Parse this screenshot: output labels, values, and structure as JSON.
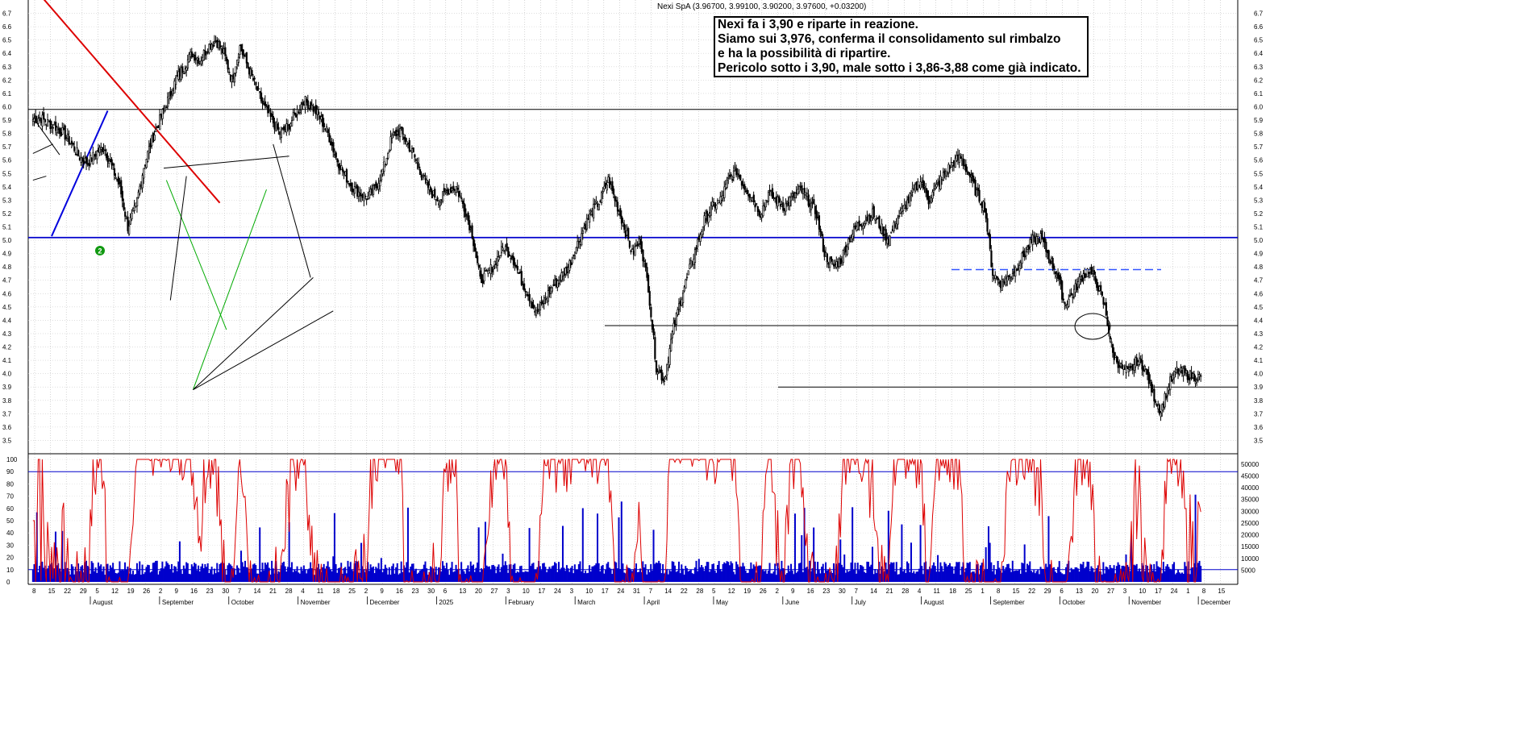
{
  "chart_data": [
    {
      "type": "candlestick",
      "title": "Nexi SpA (3.96700, 3.99100, 3.90200, 3.97600, +0.03200)",
      "ylim": [
        3.4,
        6.8
      ],
      "y_ticks": [
        "3.5",
        "3.6",
        "3.7",
        "3.8",
        "3.9",
        "4.0",
        "4.1",
        "4.2",
        "4.3",
        "4.4",
        "4.5",
        "4.6",
        "4.7",
        "4.8",
        "4.9",
        "5.0",
        "5.1",
        "5.2",
        "5.3",
        "5.4",
        "5.5",
        "5.6",
        "5.7",
        "5.8",
        "5.9",
        "6.0",
        "6.1",
        "6.2",
        "6.3",
        "6.4",
        "6.5",
        "6.6",
        "6.7"
      ],
      "annotation": {
        "lines": [
          "Nexi fa i 3,90 e riparte in reazione.",
          "Siamo sui 3,976, conferma il consolidamento sul rimbalzo",
          "e ha la possibilità di ripartire.",
          "Pericolo sotto i 3,90, male sotto i 3,86-3,88 come già indicato."
        ]
      },
      "marker_label": "2",
      "horizontal_levels": [
        {
          "value": 5.98,
          "color": "#000000"
        },
        {
          "value": 5.02,
          "color": "#0000cc"
        },
        {
          "value": 4.36,
          "color": "#000000"
        },
        {
          "value": 3.9,
          "color": "#000000"
        },
        {
          "value": 4.78,
          "color": "#3355ff",
          "dashed": true
        }
      ],
      "trendline_colors": {
        "resistance": "#dd0000",
        "support_blue": "#0000dd",
        "support_green": "#00aa00",
        "black": "#000000"
      },
      "candle_up_color": "#ffffff",
      "candle_down_color": "#000000",
      "candles": {
        "start": 5.9,
        "path": [
          5.92,
          5.88,
          5.85,
          5.8,
          5.72,
          5.62,
          5.58,
          5.65,
          5.7,
          5.55,
          5.4,
          5.1,
          5.25,
          5.55,
          5.75,
          5.9,
          6.05,
          6.2,
          6.3,
          6.4,
          6.35,
          6.45,
          6.5,
          6.4,
          6.2,
          6.45,
          6.3,
          6.15,
          6.0,
          5.9,
          5.8,
          5.85,
          5.95,
          6.05,
          6.0,
          5.92,
          5.8,
          5.62,
          5.5,
          5.4,
          5.35,
          5.32,
          5.4,
          5.55,
          5.78,
          5.82,
          5.72,
          5.6,
          5.45,
          5.35,
          5.3,
          5.38,
          5.4,
          5.25,
          5.05,
          4.7,
          4.75,
          4.85,
          4.95,
          4.88,
          4.72,
          4.6,
          4.45,
          4.55,
          4.65,
          4.72,
          4.8,
          4.95,
          5.1,
          5.22,
          5.3,
          5.45,
          5.28,
          5.1,
          4.9,
          5.0,
          4.65,
          4.05,
          3.95,
          4.3,
          4.55,
          4.75,
          4.95,
          5.15,
          5.25,
          5.3,
          5.45,
          5.52,
          5.4,
          5.32,
          5.2,
          5.35,
          5.3,
          5.25,
          5.32,
          5.38,
          5.3,
          5.2,
          4.9,
          4.8,
          4.85,
          5.0,
          5.1,
          5.15,
          5.2,
          5.1,
          5.0,
          5.15,
          5.25,
          5.35,
          5.45,
          5.3,
          5.4,
          5.5,
          5.58,
          5.62,
          5.5,
          5.35,
          5.25,
          4.75,
          4.68,
          4.72,
          4.8,
          4.9,
          5.0,
          5.02,
          4.88,
          4.75,
          4.52,
          4.6,
          4.72,
          4.78,
          4.68,
          4.5,
          4.15,
          4.05,
          4.0,
          4.1,
          4.05,
          3.85,
          3.72,
          3.92,
          4.02,
          4.0,
          3.98,
          3.97
        ],
        "bars_per_step": 1
      },
      "x_labels_upper": [
        "8",
        "15",
        "22",
        "29",
        "5",
        "12",
        "19",
        "26",
        "2",
        "9",
        "16",
        "23",
        "30",
        "7",
        "14",
        "21",
        "28",
        "4",
        "11",
        "18",
        "25",
        "2",
        "9",
        "16",
        "23",
        "30",
        "6",
        "13",
        "20",
        "27",
        "3",
        "10",
        "17",
        "24",
        "3",
        "10",
        "17",
        "24",
        "31",
        "7",
        "14",
        "22",
        "28",
        "5",
        "12",
        "19",
        "26",
        "2",
        "9",
        "16",
        "23",
        "30",
        "7",
        "14",
        "21",
        "28",
        "4",
        "11",
        "18",
        "25",
        "1",
        "8",
        "15",
        "22",
        "29",
        "6",
        "13",
        "20",
        "27",
        "3",
        "10",
        "17",
        "24",
        "1",
        "8",
        "15"
      ],
      "x_labels_months": [
        "August",
        "September",
        "October",
        "November",
        "December",
        "2025",
        "February",
        "March",
        "April",
        "May",
        "June",
        "July",
        "August",
        "September",
        "October",
        "November",
        "December"
      ]
    },
    {
      "type": "line+bar",
      "title": "",
      "oscillator": {
        "ylim": [
          0,
          100
        ],
        "y_ticks": [
          "0",
          "10",
          "20",
          "30",
          "40",
          "50",
          "60",
          "70",
          "80",
          "90",
          "100"
        ],
        "levels": [
          10,
          90
        ],
        "color": "#dd0000"
      },
      "volume": {
        "ylim": [
          0,
          52000
        ],
        "y_ticks": [
          "5000",
          "10000",
          "15000",
          "20000",
          "25000",
          "30000",
          "35000",
          "40000",
          "45000",
          "50000"
        ],
        "color": "#0000cc"
      }
    }
  ]
}
